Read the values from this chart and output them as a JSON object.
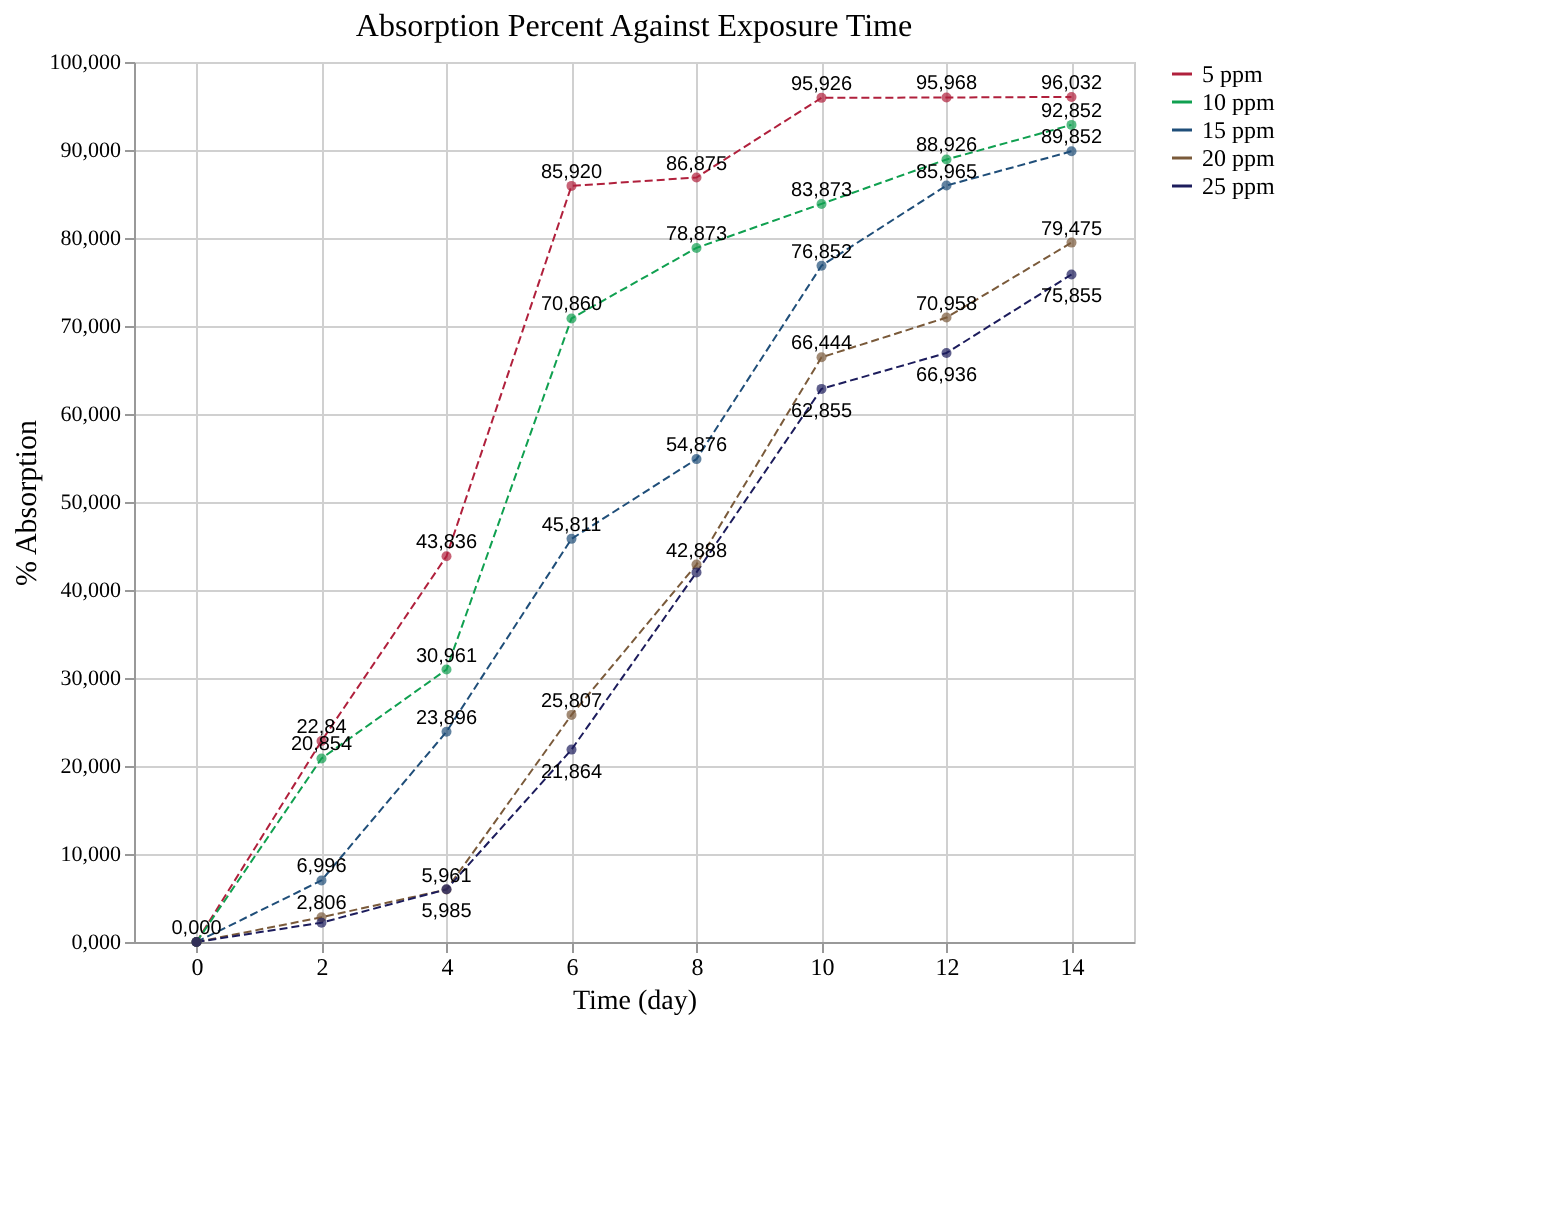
{
  "chart_data": {
    "type": "line",
    "title": "Absorption Percent Against Exposure Time",
    "xlabel": "Time (day)",
    "ylabel": "% Absorption",
    "categories": [
      "0",
      "2",
      "4",
      "6",
      "8",
      "10",
      "12",
      "14"
    ],
    "series": [
      {
        "name": "5 ppm",
        "color": "#b0203c",
        "values": [
          0,
          22.84,
          43.836,
          85.92,
          86.875,
          95.926,
          95.968,
          96.032
        ],
        "value_labels": [
          "0,000",
          "22,84",
          "43,836",
          "85,920",
          "86,875",
          "95,926",
          "95,968",
          "96,032"
        ]
      },
      {
        "name": "10 ppm",
        "color": "#10a050",
        "values": [
          0,
          20.854,
          30.961,
          70.86,
          78.873,
          83.873,
          88.926,
          92.852
        ],
        "value_labels": [
          null,
          "20,854",
          "30,961",
          "70,860",
          "78,873",
          "83,873",
          "88,926",
          "92,852"
        ]
      },
      {
        "name": "15 ppm",
        "color": "#1f4e79",
        "values": [
          0,
          6.996,
          23.896,
          45.811,
          54.876,
          76.852,
          85.965,
          89.852
        ],
        "value_labels": [
          null,
          "6,996",
          "23,896",
          "45,811",
          "54,876",
          "76,852",
          "85,965",
          "89,852"
        ]
      },
      {
        "name": "20 ppm",
        "color": "#7a5a3a",
        "values": [
          0,
          2.806,
          5.961,
          25.807,
          42.888,
          66.444,
          70.958,
          79.475
        ],
        "value_labels": [
          null,
          "2,806",
          "5,961",
          "25,807",
          "42,888",
          "66,444",
          "70,958",
          "79,475"
        ]
      },
      {
        "name": "25 ppm",
        "color": "#1c1c5c",
        "values": [
          0,
          2.2,
          5.985,
          21.864,
          42,
          62.855,
          66.936,
          75.855
        ],
        "value_labels": [
          null,
          null,
          "5,985",
          "21,864",
          null,
          "62,855",
          "66,936",
          "75,855"
        ]
      }
    ],
    "ylim": [
      0,
      100
    ],
    "yticks": [
      {
        "value": 0,
        "label": "0,000"
      },
      {
        "value": 10,
        "label": "10,000"
      },
      {
        "value": 20,
        "label": "20,000"
      },
      {
        "value": 30,
        "label": "30,000"
      },
      {
        "value": 40,
        "label": "40,000"
      },
      {
        "value": 50,
        "label": "50,000"
      },
      {
        "value": 60,
        "label": "60,000"
      },
      {
        "value": 70,
        "label": "70,000"
      },
      {
        "value": 80,
        "label": "80,000"
      },
      {
        "value": 90,
        "label": "90,000"
      },
      {
        "value": 100,
        "label": "100,000"
      }
    ],
    "grid": true,
    "legend": "right",
    "marker": "circle",
    "line_style": "dashed"
  }
}
